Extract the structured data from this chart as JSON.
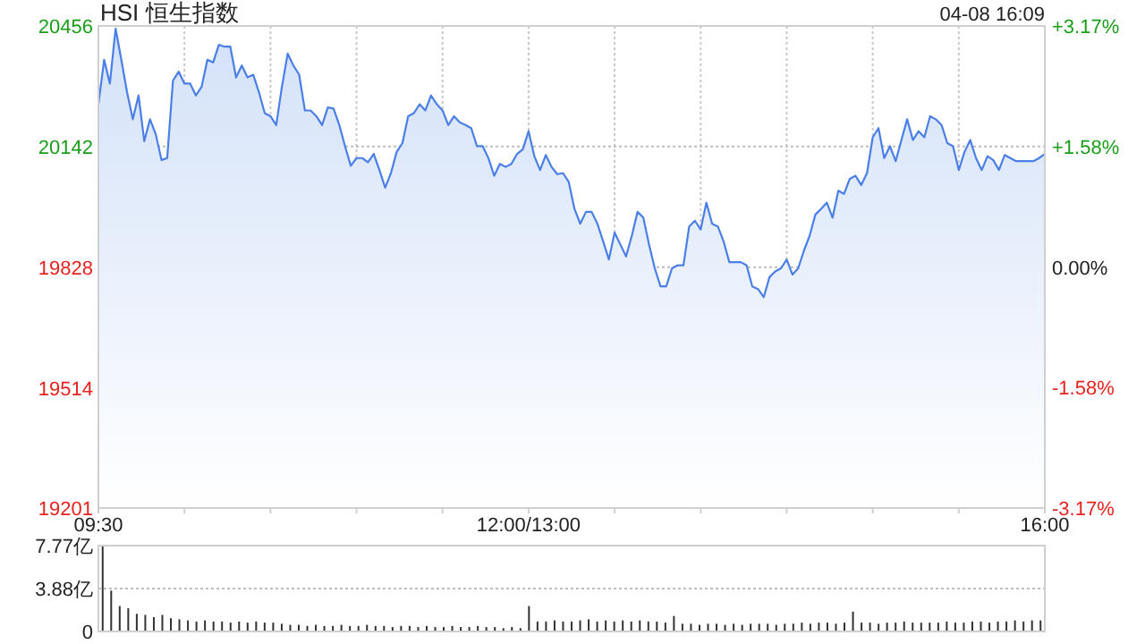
{
  "chart_data": [
    {
      "type": "area",
      "title": "HSI 恒生指数",
      "annotations": [
        "04-08 16:09"
      ],
      "categories": [
        "09:30",
        null,
        null,
        null,
        null,
        null,
        null,
        null,
        null,
        null,
        null,
        null,
        null,
        null,
        null,
        null,
        null,
        null,
        null,
        null,
        null,
        null,
        null,
        null,
        null,
        null,
        null,
        null,
        null,
        null,
        null,
        null,
        null,
        null,
        null,
        null,
        null,
        null,
        null,
        null,
        null,
        null,
        null,
        null,
        null,
        null,
        null,
        null,
        null,
        null,
        null,
        null,
        null,
        null,
        null,
        null,
        null,
        null,
        null,
        null,
        null,
        null,
        null,
        null,
        null,
        null,
        null,
        null,
        null,
        null,
        null,
        null,
        null,
        null,
        null,
        "12:00/13:00",
        null,
        null,
        null,
        null,
        null,
        null,
        null,
        null,
        null,
        null,
        null,
        null,
        null,
        null,
        null,
        null,
        null,
        null,
        null,
        null,
        null,
        null,
        null,
        null,
        null,
        null,
        null,
        null,
        null,
        null,
        null,
        null,
        null,
        null,
        null,
        null,
        null,
        null,
        null,
        null,
        null,
        null,
        null,
        null,
        null,
        null,
        null,
        null,
        null,
        null,
        null,
        null,
        null,
        null,
        null,
        null,
        null,
        null,
        null,
        null,
        null,
        null,
        null,
        null,
        null,
        null,
        null,
        null,
        null,
        null,
        null,
        null,
        null,
        null,
        null,
        null,
        null,
        null,
        null,
        null,
        null,
        null,
        null,
        null,
        null,
        null,
        null,
        null,
        null,
        "16:00"
      ],
      "series": [
        {
          "color": "#4a7fe8",
          "values": [
            20252,
            20368,
            20306,
            20449,
            20368,
            20283,
            20213,
            20275,
            20156,
            20213,
            20174,
            20107,
            20112,
            20314,
            20337,
            20306,
            20306,
            20275,
            20298,
            20368,
            20361,
            20407,
            20402,
            20402,
            20322,
            20353,
            20322,
            20329,
            20283,
            20229,
            20221,
            20198,
            20298,
            20384,
            20353,
            20329,
            20236,
            20236,
            20221,
            20198,
            20244,
            20241,
            20198,
            20143,
            20092,
            20112,
            20112,
            20101,
            20123,
            20081,
            20035,
            20073,
            20128,
            20151,
            20221,
            20229,
            20252,
            20236,
            20275,
            20252,
            20236,
            20198,
            20221,
            20205,
            20198,
            20190,
            20143,
            20143,
            20112,
            20066,
            20097,
            20089,
            20097,
            20123,
            20135,
            20182,
            20117,
            20081,
            20120,
            20089,
            20070,
            20073,
            20050,
            19980,
            19941,
            19972,
            19972,
            19941,
            19895,
            19848,
            19918,
            19887,
            19856,
            19910,
            19972,
            19957,
            19887,
            19825,
            19778,
            19778,
            19825,
            19833,
            19833,
            19934,
            19949,
            19926,
            19996,
            19941,
            19934,
            19895,
            19841,
            19841,
            19841,
            19833,
            19778,
            19771,
            19750,
            19802,
            19817,
            19825,
            19848,
            19809,
            19825,
            19871,
            19910,
            19965,
            19980,
            19996,
            19957,
            20027,
            20019,
            20058,
            20066,
            20042,
            20073,
            20166,
            20190,
            20112,
            20143,
            20104,
            20159,
            20213,
            20159,
            20182,
            20166,
            20221,
            20213,
            20198,
            20151,
            20143,
            20081,
            20128,
            20159,
            20112,
            20081,
            20117,
            20107,
            20081,
            20120,
            20112,
            20104,
            20104,
            20104,
            20104,
            20112,
            20123
          ]
        }
      ],
      "ylim": [
        19201,
        20456
      ],
      "yticks": [
        19201,
        19514,
        19828,
        20142,
        20456
      ],
      "y2lim": [
        -3.17,
        3.17
      ],
      "y2ticks": [
        {
          "value": -3.17,
          "label": "-3.17%"
        },
        {
          "value": -1.58,
          "label": "-1.58%"
        },
        {
          "value": 0,
          "label": "0.00%"
        },
        {
          "value": 1.58,
          "label": "+1.58%"
        },
        {
          "value": 3.17,
          "label": "+3.17%"
        }
      ],
      "grid": true
    },
    {
      "type": "bar",
      "tick_labels": "y",
      "grid": "y",
      "categories": [
        null,
        null,
        null,
        null,
        null,
        null,
        null,
        null,
        null,
        null,
        null,
        null,
        null,
        null,
        null,
        null,
        null,
        null,
        null,
        null,
        null,
        null,
        null,
        null,
        null,
        null,
        null,
        null,
        null,
        null,
        null,
        null,
        null,
        null,
        null,
        null,
        null,
        null,
        null,
        null,
        null,
        null,
        null,
        null,
        null,
        null,
        null,
        null,
        null,
        null,
        null,
        null,
        null,
        null,
        null,
        null,
        null,
        null,
        null,
        null,
        null,
        null,
        null,
        null,
        null,
        null,
        null,
        null,
        null,
        null,
        null,
        null,
        null,
        null,
        null,
        null,
        null,
        null,
        null,
        null,
        null,
        null,
        null,
        null,
        null,
        null,
        null,
        null,
        null,
        null,
        null,
        null,
        null,
        null,
        null,
        null,
        null,
        null,
        null,
        null,
        null,
        null,
        null,
        null,
        null,
        null,
        null,
        null,
        null,
        null,
        null
      ],
      "series": [
        {
          "color": "#333333",
          "values": [
            7.7,
            3.7,
            2.3,
            2.1,
            1.6,
            1.5,
            1.3,
            1.5,
            1.2,
            1.1,
            1.0,
            0.9,
            1.0,
            0.9,
            0.9,
            0.8,
            0.9,
            0.8,
            0.9,
            0.8,
            0.8,
            0.7,
            0.6,
            0.6,
            0.5,
            0.6,
            0.5,
            0.5,
            0.6,
            0.5,
            0.5,
            0.6,
            0.5,
            0.5,
            0.4,
            0.5,
            0.5,
            0.4,
            0.5,
            0.4,
            0.4,
            0.5,
            0.4,
            0.4,
            0.5,
            0.4,
            0.4,
            0.3,
            0.4,
            0.3,
            2.3,
            0.9,
            0.9,
            1.0,
            0.9,
            0.9,
            1.0,
            1.1,
            0.9,
            1.0,
            0.9,
            1.0,
            0.9,
            1.0,
            0.9,
            0.9,
            0.8,
            1.4,
            0.7,
            0.7,
            0.6,
            0.7,
            0.7,
            0.6,
            0.7,
            0.6,
            0.7,
            0.7,
            0.7,
            0.6,
            0.7,
            0.7,
            0.8,
            0.7,
            0.8,
            0.8,
            0.7,
            0.8,
            1.8,
            0.8,
            0.8,
            0.7,
            0.8,
            0.8,
            0.9,
            0.8,
            0.8,
            0.8,
            0.8,
            0.9,
            0.8,
            0.8,
            0.9,
            0.9,
            0.8,
            0.9,
            0.9,
            1.0,
            0.9,
            1.0,
            1.0
          ]
        }
      ],
      "ylim": [
        0,
        7.77
      ],
      "yticks": [
        0,
        {
          "value": 3.88,
          "label": "3.88亿"
        },
        {
          "value": 7.77,
          "label": "7.77亿"
        }
      ]
    }
  ]
}
